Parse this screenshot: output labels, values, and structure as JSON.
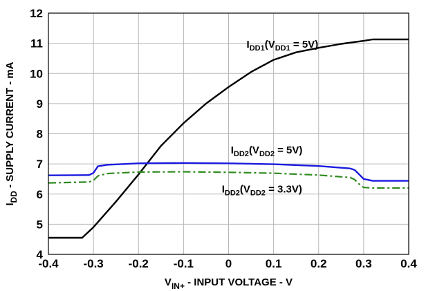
{
  "chart_data": {
    "type": "line",
    "xlabel": {
      "main": "V",
      "sub": "IN+",
      "rest": " - INPUT VOLTAGE - V"
    },
    "ylabel": {
      "main": "I",
      "sub": "DD",
      "rest": " - SUPPLY CURRENT - mA"
    },
    "xlim": [
      -0.4,
      0.4
    ],
    "ylim": [
      4,
      12
    ],
    "xticks": [
      "-0.4",
      "-0.3",
      "-0.2",
      "-0.1",
      "0",
      "0.1",
      "0.2",
      "0.3",
      "0.4"
    ],
    "yticks": [
      "4",
      "5",
      "6",
      "7",
      "8",
      "9",
      "10",
      "11",
      "12"
    ],
    "grid": true,
    "series": [
      {
        "name": "IDD1(VDD1 = 5V)",
        "label": {
          "parts": [
            {
              "t": "I",
              "s": false
            },
            {
              "t": "DD1",
              "s": true
            },
            {
              "t": "(V",
              "s": false
            },
            {
              "t": "DD1",
              "s": true
            },
            {
              "t": " = 5V)",
              "s": false
            }
          ]
        },
        "color": "#000000",
        "style": "solid",
        "x": [
          -0.4,
          -0.35,
          -0.325,
          -0.3,
          -0.25,
          -0.2,
          -0.15,
          -0.1,
          -0.05,
          0,
          0.05,
          0.1,
          0.15,
          0.2,
          0.25,
          0.3,
          0.32,
          0.35,
          0.4
        ],
        "y": [
          4.55,
          4.55,
          4.55,
          4.9,
          5.75,
          6.65,
          7.6,
          8.35,
          9.0,
          9.55,
          10.05,
          10.45,
          10.7,
          10.85,
          10.98,
          11.08,
          11.13,
          11.13,
          11.13
        ]
      },
      {
        "name": "IDD2(VDD2 = 5V)",
        "label": {
          "parts": [
            {
              "t": "I",
              "s": false
            },
            {
              "t": "DD2",
              "s": true
            },
            {
              "t": "(V",
              "s": false
            },
            {
              "t": "DD2",
              "s": true
            },
            {
              "t": " = 5V)",
              "s": false
            }
          ]
        },
        "color": "#1a1adf",
        "style": "solid",
        "x": [
          -0.4,
          -0.31,
          -0.3,
          -0.29,
          -0.27,
          -0.2,
          -0.1,
          0,
          0.1,
          0.2,
          0.27,
          0.28,
          0.29,
          0.3,
          0.32,
          0.4
        ],
        "y": [
          6.62,
          6.63,
          6.7,
          6.92,
          6.97,
          7.02,
          7.03,
          7.02,
          6.99,
          6.93,
          6.85,
          6.8,
          6.65,
          6.5,
          6.44,
          6.44
        ]
      },
      {
        "name": "IDD2(VDD2 = 3.3V)",
        "label": {
          "parts": [
            {
              "t": "I",
              "s": false
            },
            {
              "t": "DD2",
              "s": true
            },
            {
              "t": "(V",
              "s": false
            },
            {
              "t": "DD2",
              "s": true
            },
            {
              "t": " = 3.3V)",
              "s": false
            }
          ]
        },
        "color": "#2e8b1e",
        "style": "dashdot",
        "x": [
          -0.4,
          -0.31,
          -0.3,
          -0.29,
          -0.27,
          -0.2,
          -0.1,
          0,
          0.1,
          0.2,
          0.27,
          0.28,
          0.29,
          0.3,
          0.32,
          0.4
        ],
        "y": [
          6.37,
          6.4,
          6.45,
          6.6,
          6.68,
          6.73,
          6.74,
          6.72,
          6.69,
          6.63,
          6.55,
          6.48,
          6.33,
          6.22,
          6.2,
          6.2
        ]
      }
    ]
  }
}
